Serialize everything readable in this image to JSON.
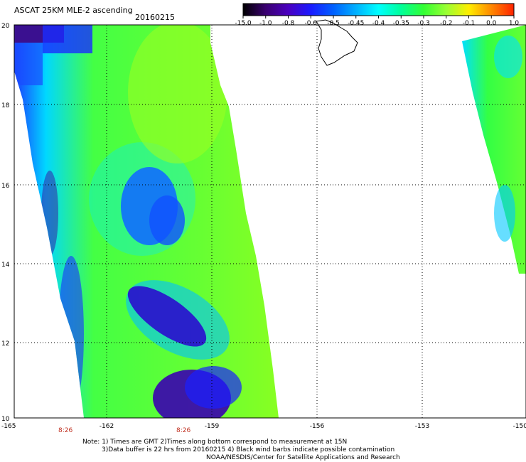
{
  "header": {
    "title": "ASCAT 25KM MLE-2 ascending",
    "date": "20160215"
  },
  "colorbar": {
    "labels": [
      "-15.0",
      "-1.0",
      "-0.8",
      "-0.6",
      "-0.5",
      "-0.45",
      "-0.4",
      "-0.35",
      "-0.3",
      "-0.2",
      "-0.1",
      "0.0",
      "1.0"
    ],
    "colors": [
      "#000000",
      "#3a0070",
      "#4a00c0",
      "#1a1aff",
      "#0060ff",
      "#00b0ff",
      "#00ffff",
      "#00ff99",
      "#33ff33",
      "#99ff33",
      "#ffee00",
      "#ff8800",
      "#ff2200"
    ]
  },
  "axes": {
    "lon_ticks": [
      "-165",
      "-162",
      "-159",
      "-156",
      "-153",
      "-150"
    ],
    "lat_ticks": [
      "20",
      "18",
      "16",
      "14",
      "12",
      "10"
    ]
  },
  "time_labels": [
    "8:26",
    "8:26"
  ],
  "footer": {
    "note1": "Note: 1) Times are GMT 2)Times along bottom correspond to measurement at 15N",
    "note2": "3)Data buffer is 22 hrs from 20160215 4) Black wind barbs indicate possible contamination",
    "note3": "NOAA/NESDIS/Center for Satellite Applications and Research"
  }
}
